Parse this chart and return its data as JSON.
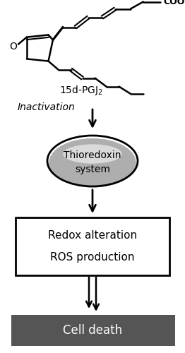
{
  "background_color": "#ffffff",
  "chemical_name": "15d-PGJ$_2$",
  "inactivation_label": "Inactivation",
  "thioredoxin_line1": "Thioredoxin",
  "thioredoxin_line2": "system",
  "redox_line1": "Redox alteration",
  "redox_line2": "ROS production",
  "cell_death_label": "Cell death",
  "cell_death_bg": "#555555",
  "arrow_color": "#000000",
  "box_edgecolor": "#000000",
  "figsize": [
    2.62,
    5.0
  ],
  "dpi": 100
}
